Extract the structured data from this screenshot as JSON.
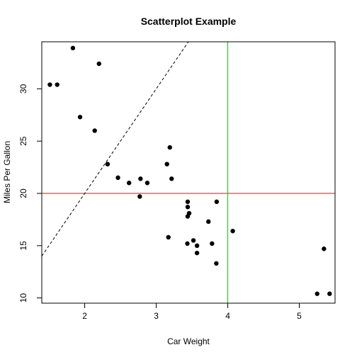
{
  "chart_data": {
    "type": "scatter",
    "title": "Scatterplot Example",
    "xlabel": "Car Weight",
    "ylabel": "Miles Per Gallon",
    "xlim": [
      1.4,
      5.5
    ],
    "ylim": [
      9.5,
      34.5
    ],
    "x_ticks": [
      2,
      3,
      4,
      5
    ],
    "y_ticks": [
      10,
      15,
      20,
      25,
      30
    ],
    "grid": false,
    "points": [
      {
        "x": 2.62,
        "y": 21.0
      },
      {
        "x": 2.875,
        "y": 21.0
      },
      {
        "x": 2.32,
        "y": 22.8
      },
      {
        "x": 3.215,
        "y": 21.4
      },
      {
        "x": 3.44,
        "y": 18.7
      },
      {
        "x": 3.46,
        "y": 18.1
      },
      {
        "x": 3.57,
        "y": 14.3
      },
      {
        "x": 3.19,
        "y": 24.4
      },
      {
        "x": 3.15,
        "y": 22.8
      },
      {
        "x": 3.44,
        "y": 19.2
      },
      {
        "x": 3.44,
        "y": 17.8
      },
      {
        "x": 4.07,
        "y": 16.4
      },
      {
        "x": 3.73,
        "y": 17.3
      },
      {
        "x": 3.78,
        "y": 15.2
      },
      {
        "x": 5.25,
        "y": 10.4
      },
      {
        "x": 5.424,
        "y": 10.4
      },
      {
        "x": 5.345,
        "y": 14.7
      },
      {
        "x": 2.2,
        "y": 32.4
      },
      {
        "x": 1.615,
        "y": 30.4
      },
      {
        "x": 1.835,
        "y": 33.9
      },
      {
        "x": 2.465,
        "y": 21.5
      },
      {
        "x": 3.52,
        "y": 15.5
      },
      {
        "x": 3.435,
        "y": 15.2
      },
      {
        "x": 3.84,
        "y": 13.3
      },
      {
        "x": 3.845,
        "y": 19.2
      },
      {
        "x": 1.935,
        "y": 27.3
      },
      {
        "x": 2.14,
        "y": 26.0
      },
      {
        "x": 1.513,
        "y": 30.4
      },
      {
        "x": 3.17,
        "y": 15.8
      },
      {
        "x": 2.77,
        "y": 19.7
      },
      {
        "x": 3.57,
        "y": 15.0
      },
      {
        "x": 2.78,
        "y": 21.4
      }
    ],
    "reference_lines": [
      {
        "kind": "horizontal",
        "y": 20,
        "color": "#ff0000",
        "style": "solid"
      },
      {
        "kind": "vertical",
        "x": 4,
        "color": "#00cc00",
        "style": "solid"
      },
      {
        "kind": "abline",
        "intercept": 0,
        "slope": 10,
        "color": "#000000",
        "style": "dashed"
      }
    ],
    "point_color": "#000000"
  }
}
